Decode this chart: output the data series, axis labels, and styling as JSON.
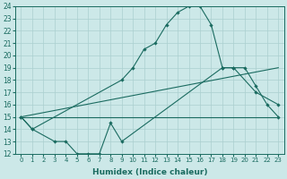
{
  "xlabel": "Humidex (Indice chaleur)",
  "background_color": "#cce8e8",
  "grid_color": "#aacfcf",
  "line_color": "#1a6b60",
  "ylim": [
    12,
    24
  ],
  "yticks": [
    12,
    13,
    14,
    15,
    16,
    17,
    18,
    19,
    20,
    21,
    22,
    23,
    24
  ],
  "xticks": [
    0,
    1,
    2,
    3,
    4,
    5,
    6,
    7,
    8,
    9,
    10,
    11,
    12,
    13,
    14,
    15,
    16,
    17,
    18,
    19,
    20,
    21,
    22,
    23
  ],
  "line1_x": [
    0,
    1,
    3,
    4,
    5,
    6,
    7,
    8,
    9,
    18,
    19,
    21,
    23
  ],
  "line1_y": [
    15,
    14,
    13,
    13,
    12,
    12,
    12,
    14.5,
    13,
    19,
    19,
    17,
    16
  ],
  "line2_x": [
    0,
    1,
    9,
    10,
    11,
    12,
    13,
    14,
    15,
    16,
    17,
    18,
    19,
    20,
    21,
    22,
    23
  ],
  "line2_y": [
    15,
    14,
    18,
    19,
    20.5,
    21,
    22.5,
    23.5,
    24,
    24,
    22.5,
    19,
    19,
    19,
    17.5,
    16,
    15
  ],
  "line3_x": [
    0,
    23
  ],
  "line3_y": [
    15,
    19
  ],
  "line4_x": [
    0,
    23
  ],
  "line4_y": [
    15,
    15
  ]
}
